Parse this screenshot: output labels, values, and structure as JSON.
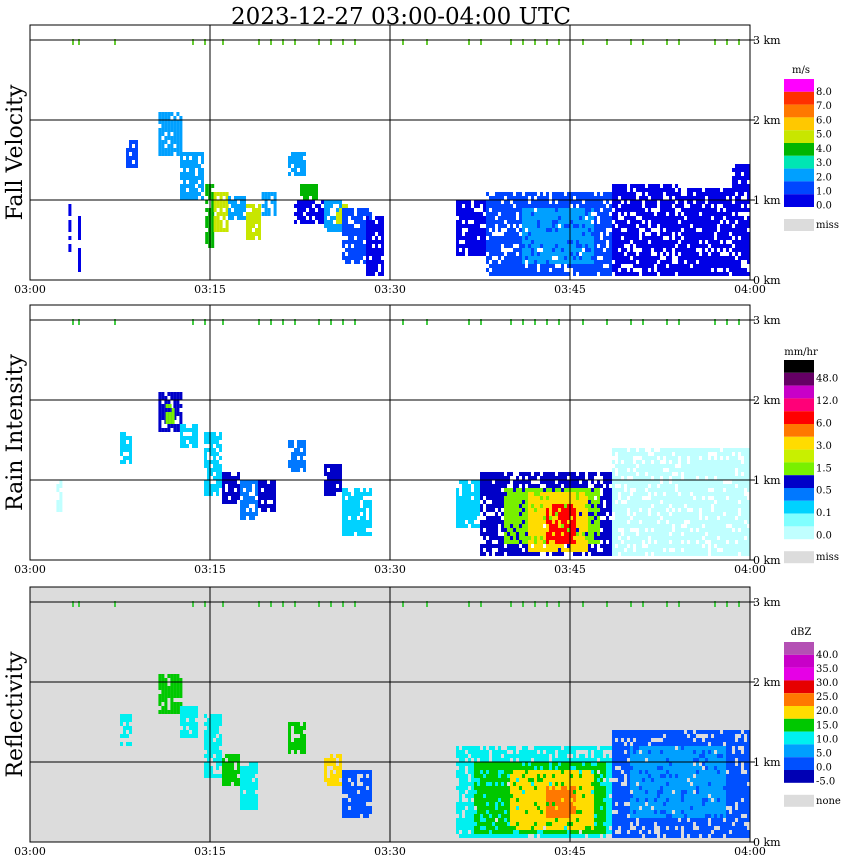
{
  "title": "2023-12-27   03:00-04:00 UTC",
  "chart_data": [
    {
      "type": "heatmap",
      "ylabel": "Fall Velocity",
      "x_ticks": [
        "03:00",
        "03:15",
        "03:30",
        "03:45",
        "04:00"
      ],
      "y_ticks": [
        "0 km",
        "1 km",
        "2 km",
        "3 km"
      ],
      "xlim": [
        "03:00",
        "04:00"
      ],
      "ylim": [
        0,
        3.2
      ],
      "grid": true,
      "legend_placement": "right",
      "colorbar": {
        "unit": "m/s",
        "labels": [
          "8.0",
          "7.0",
          "6.0",
          "5.0",
          "4.0",
          "3.0",
          "2.0",
          "1.0",
          "0.0"
        ],
        "colors": [
          "#ff00ff",
          "#ff3000",
          "#ff7800",
          "#ffc800",
          "#c8e600",
          "#00b400",
          "#00e6b4",
          "#00a0ff",
          "#0046ff",
          "#0000e6"
        ],
        "missing_label": "miss",
        "missing_color": "#dcdcdc"
      },
      "background": "#ffffff",
      "cells": [
        {
          "x": [
            3.2,
            3.3
          ],
          "y": [
            0.35,
            0.95
          ],
          "level": 9
        },
        {
          "x": [
            4.0,
            4.2
          ],
          "y": [
            0.1,
            0.8
          ],
          "level": 9
        },
        {
          "x": [
            8.0,
            9.0
          ],
          "y": [
            1.4,
            1.75
          ],
          "level": 8
        },
        {
          "x": [
            10.7,
            12.5
          ],
          "y": [
            1.55,
            2.1
          ],
          "level": 7
        },
        {
          "x": [
            12.5,
            14.5
          ],
          "y": [
            1.0,
            1.6
          ],
          "level": 7
        },
        {
          "x": [
            14.6,
            15.3
          ],
          "y": [
            0.4,
            1.2
          ],
          "level": 5
        },
        {
          "x": [
            15.3,
            16.5
          ],
          "y": [
            0.6,
            1.1
          ],
          "level": 4
        },
        {
          "x": [
            16.5,
            18.0
          ],
          "y": [
            0.75,
            1.05
          ],
          "level": 7
        },
        {
          "x": [
            18.0,
            19.2
          ],
          "y": [
            0.5,
            0.95
          ],
          "level": 4
        },
        {
          "x": [
            19.3,
            20.5
          ],
          "y": [
            0.8,
            1.1
          ],
          "level": 7
        },
        {
          "x": [
            21.5,
            23.0
          ],
          "y": [
            1.3,
            1.6
          ],
          "level": 7
        },
        {
          "x": [
            22.5,
            24.0
          ],
          "y": [
            1.0,
            1.2
          ],
          "level": 5
        },
        {
          "x": [
            22.0,
            24.5
          ],
          "y": [
            0.7,
            1.0
          ],
          "level": 9
        },
        {
          "x": [
            24.5,
            26.0
          ],
          "y": [
            0.6,
            1.0
          ],
          "level": 7
        },
        {
          "x": [
            25.5,
            26.5
          ],
          "y": [
            0.7,
            0.95
          ],
          "level": 4
        },
        {
          "x": [
            26.0,
            28.5
          ],
          "y": [
            0.2,
            0.9
          ],
          "level": 8
        },
        {
          "x": [
            28.0,
            29.3
          ],
          "y": [
            0.05,
            0.8
          ],
          "level": 9
        },
        {
          "x": [
            35.5,
            38.0
          ],
          "y": [
            0.3,
            1.0
          ],
          "level": 9
        },
        {
          "x": [
            38.0,
            48.5
          ],
          "y": [
            0.05,
            1.1
          ],
          "level": 8
        },
        {
          "x": [
            41.0,
            47.0
          ],
          "y": [
            0.2,
            0.9
          ],
          "level": 7
        },
        {
          "x": [
            48.5,
            54.0
          ],
          "y": [
            0.05,
            1.2
          ],
          "level": 9
        },
        {
          "x": [
            54.0,
            58.5
          ],
          "y": [
            0.05,
            1.15
          ],
          "level": 9
        },
        {
          "x": [
            58.5,
            60.0
          ],
          "y": [
            0.05,
            1.45
          ],
          "level": 9
        }
      ]
    },
    {
      "type": "heatmap",
      "ylabel": "Rain Intensity",
      "x_ticks": [
        "03:00",
        "03:15",
        "03:30",
        "03:45",
        "04:00"
      ],
      "y_ticks": [
        "0 km",
        "1 km",
        "2 km",
        "3 km"
      ],
      "xlim": [
        "03:00",
        "04:00"
      ],
      "ylim": [
        0,
        3.2
      ],
      "grid": true,
      "legend_placement": "right",
      "colorbar": {
        "unit": "mm/hr",
        "labels": [
          "48.0",
          "12.0",
          "6.0",
          "3.0",
          "1.5",
          "0.5",
          "0.1",
          "0.0"
        ],
        "colors": [
          "#000000",
          "#640064",
          "#c800c8",
          "#ff0078",
          "#ff0000",
          "#ff7800",
          "#ffdc00",
          "#c8f000",
          "#78f000",
          "#0000c8",
          "#0078ff",
          "#00d2ff",
          "#80ffff",
          "#c0ffff"
        ],
        "missing_label": "miss",
        "missing_color": "#dcdcdc"
      },
      "background": "#ffffff",
      "cells": [
        {
          "x": [
            2.2,
            2.5
          ],
          "y": [
            0.6,
            1.0
          ],
          "level": 13
        },
        {
          "x": [
            7.5,
            8.5
          ],
          "y": [
            1.2,
            1.6
          ],
          "level": 11
        },
        {
          "x": [
            10.7,
            12.5
          ],
          "y": [
            1.6,
            2.1
          ],
          "level": 9
        },
        {
          "x": [
            11.3,
            12.0
          ],
          "y": [
            1.7,
            1.95
          ],
          "level": 8
        },
        {
          "x": [
            12.5,
            14.0
          ],
          "y": [
            1.4,
            1.7
          ],
          "level": 11
        },
        {
          "x": [
            14.5,
            16.0
          ],
          "y": [
            0.8,
            1.6
          ],
          "level": 11
        },
        {
          "x": [
            16.0,
            17.5
          ],
          "y": [
            0.7,
            1.1
          ],
          "level": 9
        },
        {
          "x": [
            17.5,
            19.0
          ],
          "y": [
            0.5,
            1.0
          ],
          "level": 10
        },
        {
          "x": [
            19.0,
            20.3
          ],
          "y": [
            0.6,
            1.0
          ],
          "level": 9
        },
        {
          "x": [
            21.5,
            23.0
          ],
          "y": [
            1.1,
            1.5
          ],
          "level": 10
        },
        {
          "x": [
            24.5,
            26.0
          ],
          "y": [
            0.8,
            1.2
          ],
          "level": 9
        },
        {
          "x": [
            26.0,
            28.5
          ],
          "y": [
            0.3,
            0.9
          ],
          "level": 11
        },
        {
          "x": [
            35.5,
            37.5
          ],
          "y": [
            0.4,
            1.0
          ],
          "level": 11
        },
        {
          "x": [
            37.5,
            48.5
          ],
          "y": [
            0.05,
            1.1
          ],
          "level": 9
        },
        {
          "x": [
            39.5,
            47.5
          ],
          "y": [
            0.2,
            0.9
          ],
          "level": 8
        },
        {
          "x": [
            41.5,
            46.5
          ],
          "y": [
            0.1,
            0.85
          ],
          "level": 6
        },
        {
          "x": [
            43.0,
            45.5
          ],
          "y": [
            0.2,
            0.7
          ],
          "level": 4
        },
        {
          "x": [
            48.5,
            60.0
          ],
          "y": [
            0.05,
            1.4
          ],
          "level": 13
        }
      ]
    },
    {
      "type": "heatmap",
      "ylabel": "Reflectivity",
      "x_ticks": [
        "03:00",
        "03:15",
        "03:30",
        "03:45",
        "04:00"
      ],
      "y_ticks": [
        "0 km",
        "1 km",
        "2 km",
        "3 km"
      ],
      "xlim": [
        "03:00",
        "04:00"
      ],
      "ylim": [
        0,
        3.2
      ],
      "grid": true,
      "legend_placement": "right",
      "colorbar": {
        "unit": "dBZ",
        "labels": [
          "40.0",
          "35.0",
          "30.0",
          "25.0",
          "20.0",
          "15.0",
          "10.0",
          "5.0",
          "0.0",
          "-5.0"
        ],
        "colors": [
          "#b450b4",
          "#c800c8",
          "#e600e6",
          "#e60000",
          "#ff7800",
          "#ffdc00",
          "#00c800",
          "#00f0f0",
          "#00a0ff",
          "#0050ff",
          "#0000b4"
        ],
        "missing_label": "none",
        "missing_color": "#dcdcdc"
      },
      "background": "#dcdcdc",
      "cells": [
        {
          "x": [
            7.5,
            8.5
          ],
          "y": [
            1.2,
            1.6
          ],
          "level": 7
        },
        {
          "x": [
            10.7,
            12.5
          ],
          "y": [
            1.6,
            2.1
          ],
          "level": 6
        },
        {
          "x": [
            12.5,
            14.0
          ],
          "y": [
            1.3,
            1.7
          ],
          "level": 7
        },
        {
          "x": [
            14.5,
            16.0
          ],
          "y": [
            0.8,
            1.6
          ],
          "level": 7
        },
        {
          "x": [
            16.0,
            17.5
          ],
          "y": [
            0.7,
            1.1
          ],
          "level": 6
        },
        {
          "x": [
            17.5,
            19.0
          ],
          "y": [
            0.4,
            1.0
          ],
          "level": 7
        },
        {
          "x": [
            21.5,
            23.0
          ],
          "y": [
            1.1,
            1.5
          ],
          "level": 6
        },
        {
          "x": [
            24.5,
            26.0
          ],
          "y": [
            0.7,
            1.1
          ],
          "level": 5
        },
        {
          "x": [
            26.0,
            28.5
          ],
          "y": [
            0.3,
            0.9
          ],
          "level": 9
        },
        {
          "x": [
            35.5,
            48.5
          ],
          "y": [
            0.05,
            1.2
          ],
          "level": 7
        },
        {
          "x": [
            37.0,
            48.0
          ],
          "y": [
            0.1,
            1.0
          ],
          "level": 6
        },
        {
          "x": [
            40.0,
            47.0
          ],
          "y": [
            0.15,
            0.9
          ],
          "level": 5
        },
        {
          "x": [
            43.0,
            45.5
          ],
          "y": [
            0.3,
            0.7
          ],
          "level": 4
        },
        {
          "x": [
            48.5,
            60.0
          ],
          "y": [
            0.05,
            1.4
          ],
          "level": 9
        },
        {
          "x": [
            50.0,
            58.0
          ],
          "y": [
            0.3,
            1.2
          ],
          "level": 8
        }
      ]
    }
  ]
}
